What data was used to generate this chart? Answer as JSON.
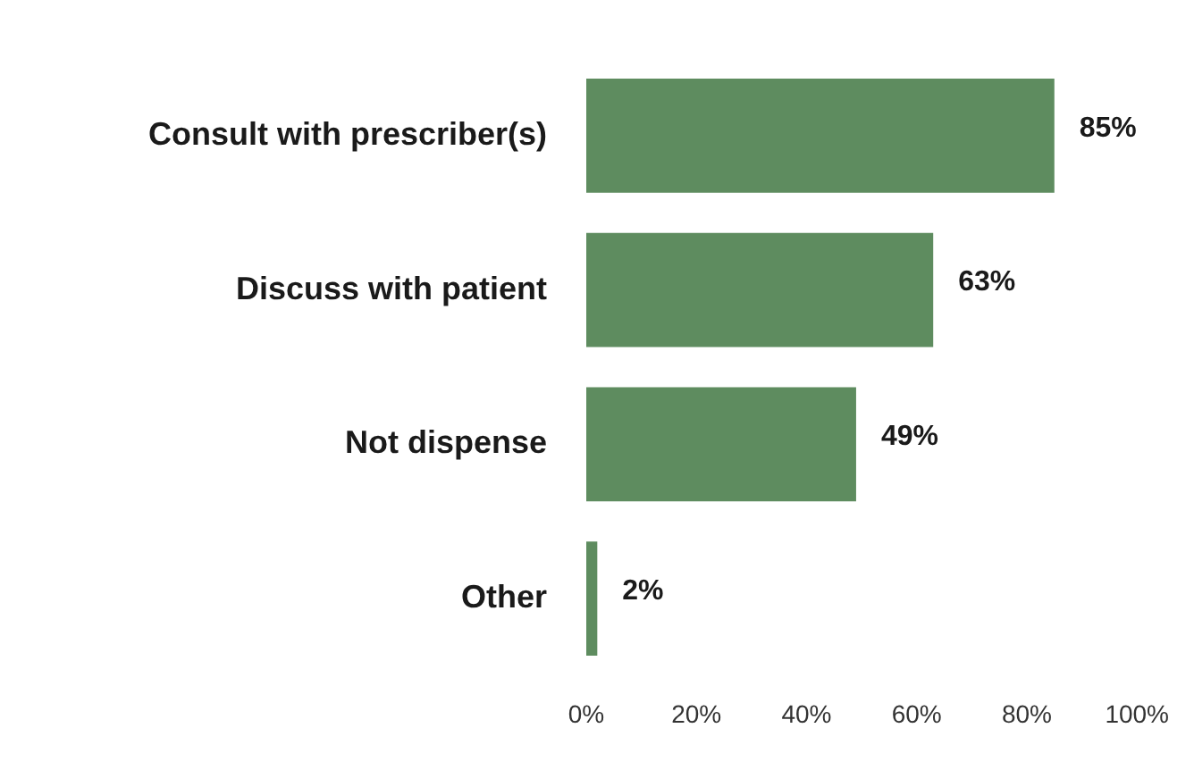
{
  "chart_data": {
    "type": "bar",
    "orientation": "horizontal",
    "categories": [
      "Consult with prescriber(s)",
      "Discuss with patient",
      "Not dispense",
      "Other"
    ],
    "values": [
      85,
      63,
      49,
      2
    ],
    "color": "#5e8c5f",
    "value_labels": [
      "85%",
      "63%",
      "49%",
      "2%"
    ],
    "xlim": [
      0,
      100
    ],
    "xticks": [
      {
        "value": 0,
        "label": "0%"
      },
      {
        "value": 20,
        "label": "20%"
      },
      {
        "value": 40,
        "label": "40%"
      },
      {
        "value": 60,
        "label": "60%"
      },
      {
        "value": 80,
        "label": "80%"
      },
      {
        "value": 100,
        "label": "100%"
      }
    ],
    "grid": false,
    "legend": false
  }
}
